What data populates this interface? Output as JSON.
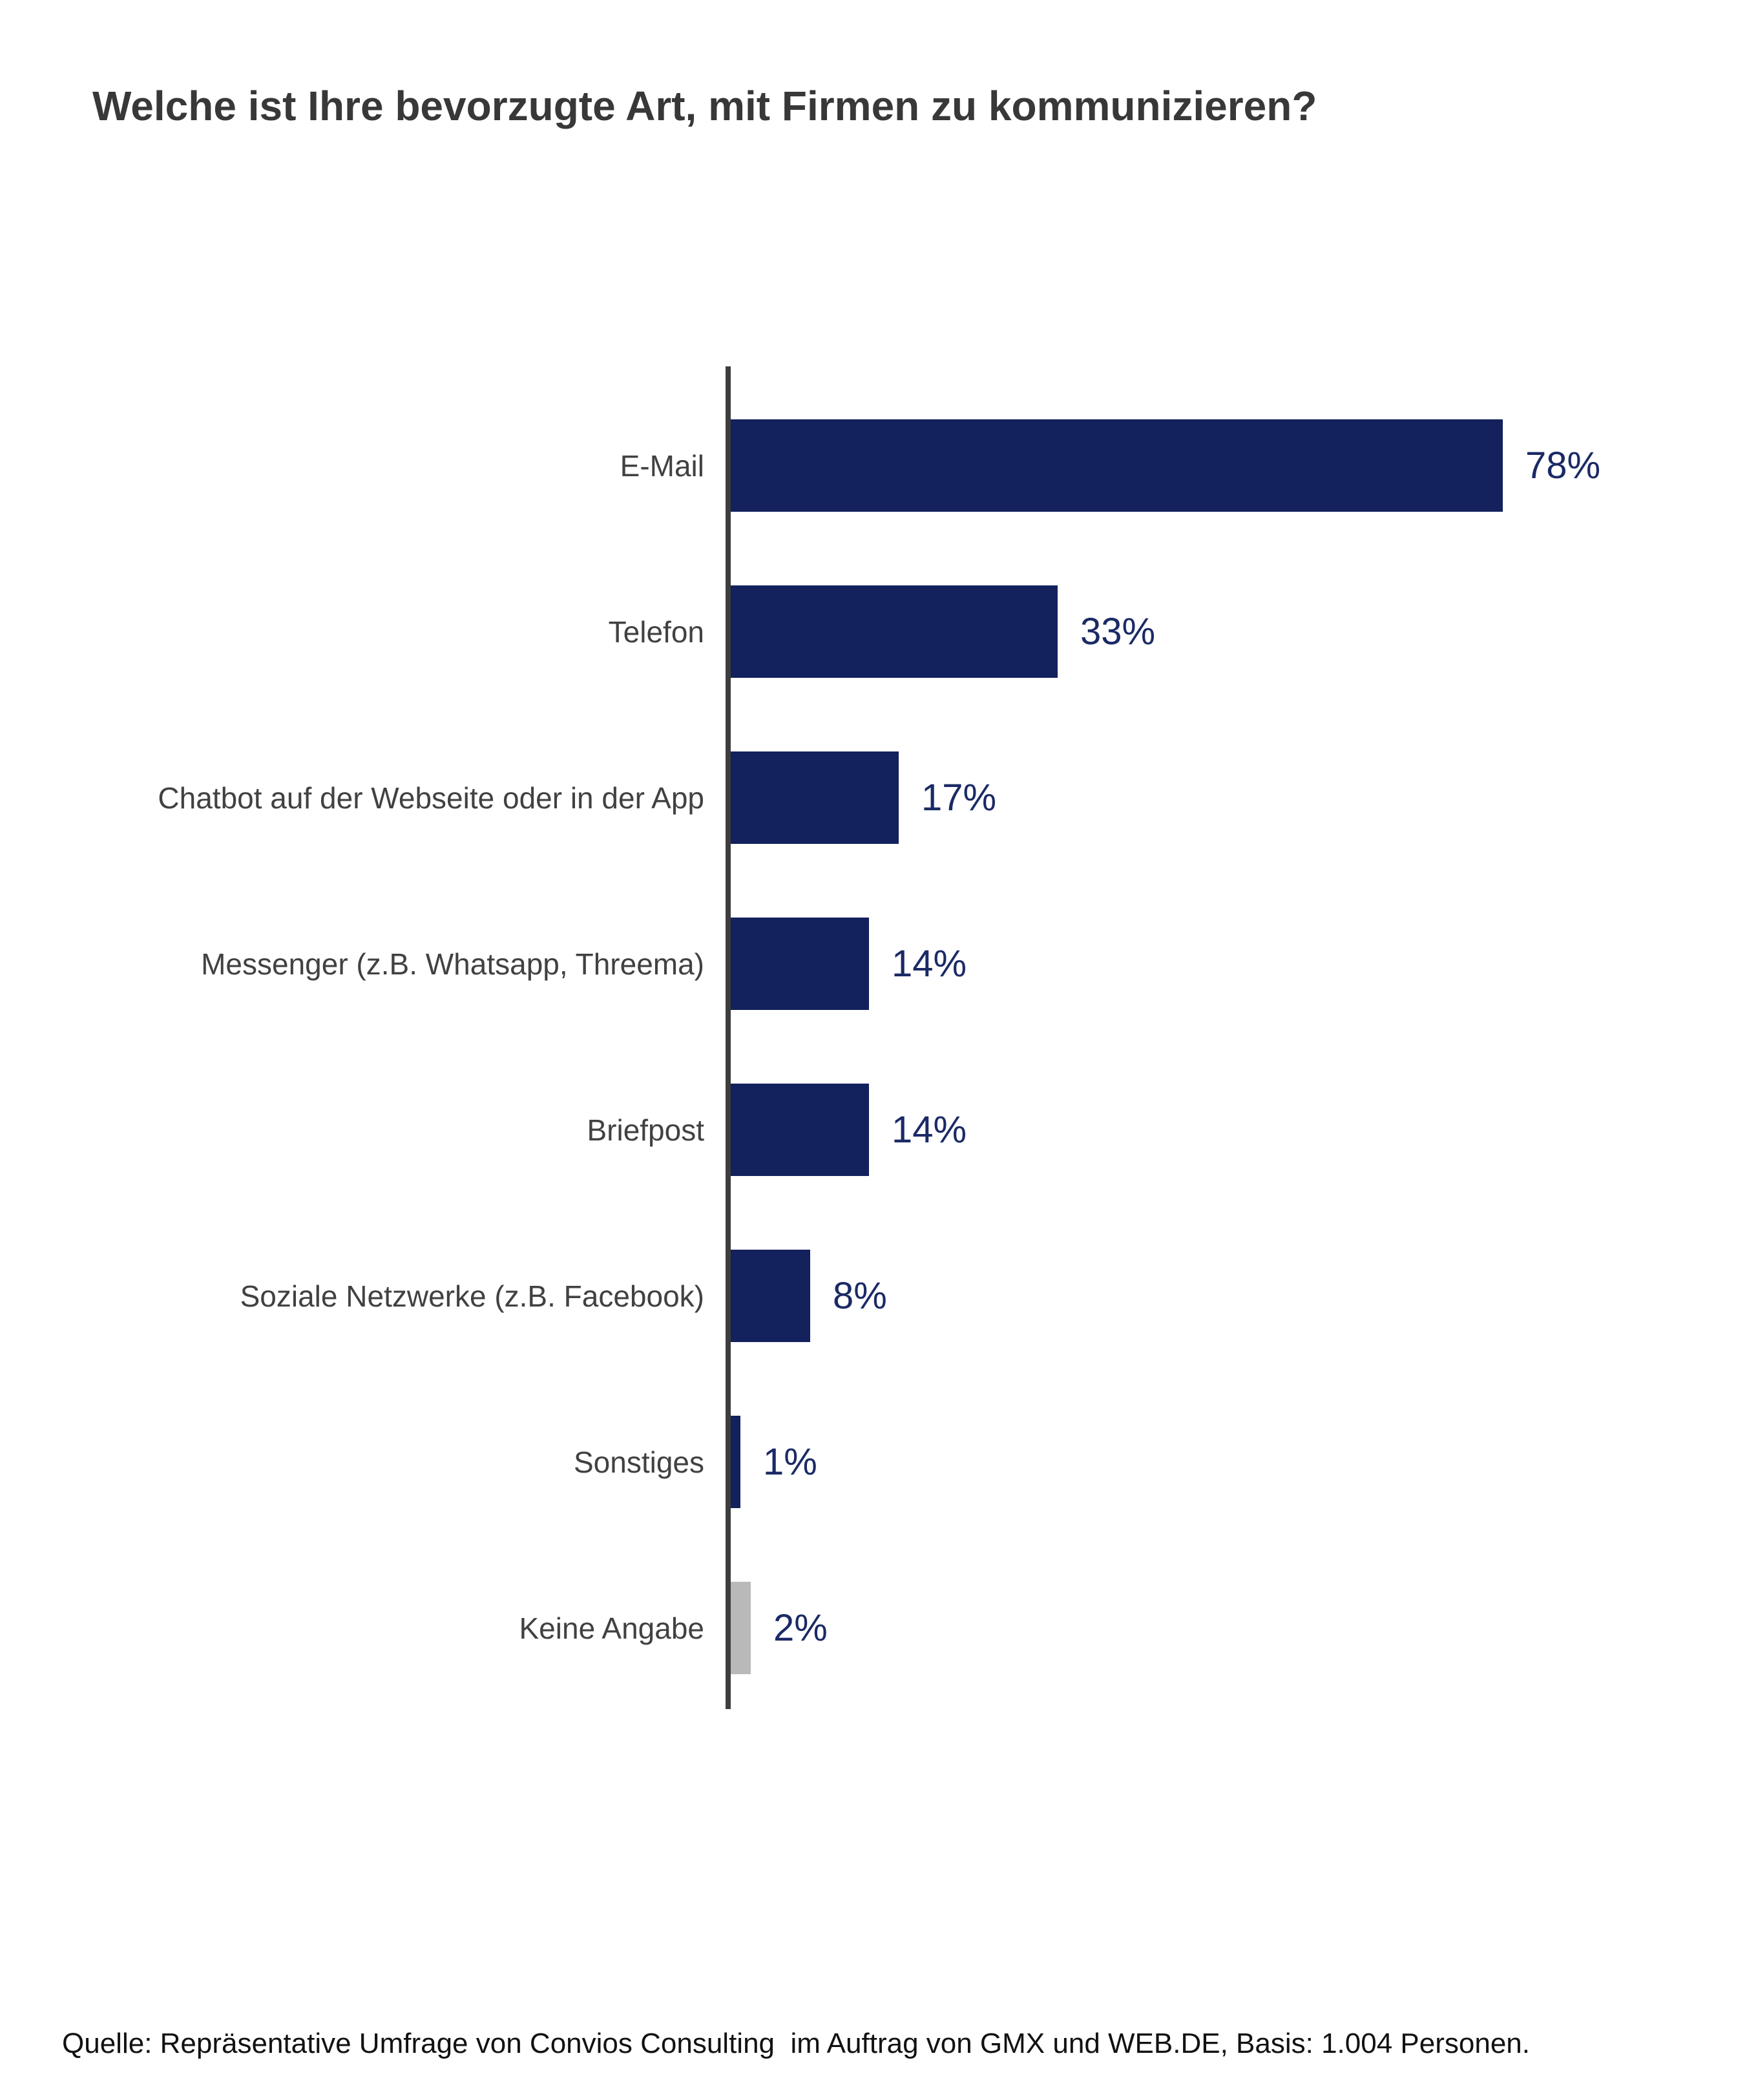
{
  "title": "Welche ist Ihre bevorzugte Art, mit Firmen zu kommunizieren?",
  "source": "Quelle: Repräsentative Umfrage von Convios Consulting  im Auftrag von GMX und WEB.DE, Basis: 1.004 Personen.",
  "colors": {
    "bar_primary": "#13215C",
    "bar_muted": "#B9B9B9",
    "value_text": "#1B2A66",
    "category_text": "#414141",
    "axis": "#3D3D3D",
    "title_text": "#383838",
    "source_text": "#111111",
    "background": "#FFFFFF"
  },
  "chart_data": {
    "type": "bar",
    "orientation": "horizontal",
    "title": "Welche ist Ihre bevorzugte Art, mit Firmen zu kommunizieren?",
    "categories": [
      "E-Mail",
      "Telefon",
      "Chatbot auf der Webseite oder in der App",
      "Messenger (z.B. Whatsapp, Threema)",
      "Briefpost",
      "Soziale Netzwerke (z.B. Facebook)",
      "Sonstiges",
      "Keine Angabe"
    ],
    "values": [
      78,
      33,
      17,
      14,
      14,
      8,
      1,
      2
    ],
    "unit": "%",
    "value_labels": [
      "78%",
      "33%",
      "17%",
      "14%",
      "14%",
      "8%",
      "1%",
      "2%"
    ],
    "bar_colors": [
      "#13215C",
      "#13215C",
      "#13215C",
      "#13215C",
      "#13215C",
      "#13215C",
      "#13215C",
      "#B9B9B9"
    ],
    "xlabel": "",
    "ylabel": "",
    "xlim": [
      0,
      100
    ],
    "grid": false,
    "legend": false,
    "value_label_position": "outside-end"
  }
}
